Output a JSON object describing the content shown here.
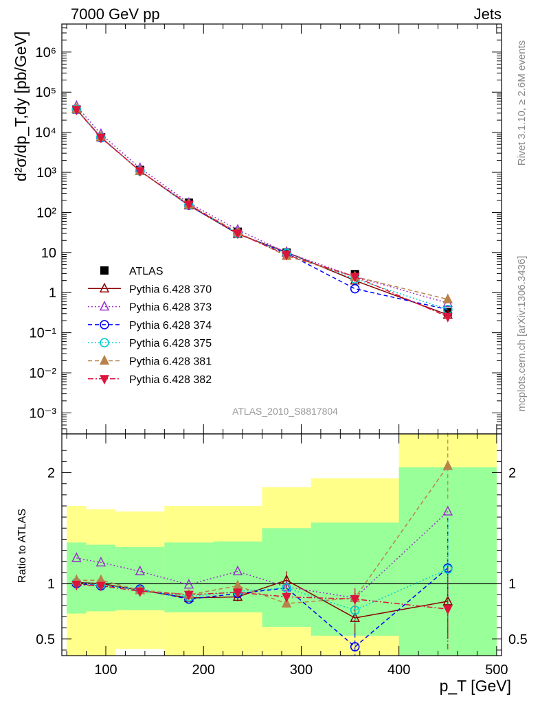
{
  "header": {
    "left": "7000 GeV pp",
    "right": "Jets"
  },
  "side_labels": {
    "rivet": "Rivet 3.1.10, ≥ 2.6M events",
    "mcplots": "mcplots.cern.ch [arXiv:1306.3436]"
  },
  "analysis_id": "ATLAS_2010_S8817804",
  "chart_data": [
    {
      "type": "scatter",
      "title": "",
      "ylabel": "d²σ/dp_T,dy [pb/GeV]",
      "yscale": "log",
      "ylim": [
        0.0003,
        5000000
      ],
      "xlim": [
        55,
        505
      ],
      "ytick_labels": [
        "10⁻³",
        "10⁻²",
        "10⁻¹",
        "1",
        "10",
        "10²",
        "10³",
        "10⁴",
        "10⁵",
        "10⁶"
      ],
      "ytick_values": [
        0.001,
        0.01,
        0.1,
        1,
        10,
        100,
        1000,
        10000,
        100000,
        1000000
      ],
      "legend_position": "lower-left",
      "x": [
        70,
        95,
        135,
        185,
        235,
        285,
        355,
        450
      ],
      "series": [
        {
          "name": "ATLAS",
          "color": "#000000",
          "marker": "square",
          "values": [
            37000,
            7500,
            1150,
            175,
            33,
            10,
            2.9,
            0.33
          ]
        },
        {
          "name": "Pythia 6.428 370",
          "color": "#8b0000",
          "marker": "triangle-open",
          "dash": "solid",
          "values": [
            37500,
            7500,
            1080,
            150,
            29,
            10.2,
            2.0,
            0.28
          ]
        },
        {
          "name": "Pythia 6.428 373",
          "color": "#9932cc",
          "marker": "triangle-open",
          "dash": "dotted",
          "values": [
            45000,
            9000,
            1280,
            172,
            37,
            10.0,
            2.5,
            0.55
          ]
        },
        {
          "name": "Pythia 6.428 374",
          "color": "#0000ff",
          "marker": "circle-open",
          "dash": "dashed",
          "values": [
            37000,
            7300,
            1090,
            150,
            30,
            9.6,
            1.25,
            0.38
          ]
        },
        {
          "name": "Pythia 6.428 375",
          "color": "#00ced1",
          "marker": "circle-open",
          "dash": "dotted",
          "values": [
            37500,
            7500,
            1080,
            152,
            30,
            9.6,
            2.2,
            0.38
          ]
        },
        {
          "name": "Pythia 6.428 381",
          "color": "#b8824a",
          "marker": "triangle-filled",
          "dash": "dashed",
          "values": [
            38000,
            7700,
            1080,
            157,
            32,
            8.2,
            2.5,
            0.68
          ]
        },
        {
          "name": "Pythia 6.428 382",
          "color": "#dc143c",
          "marker": "triangledown-filled",
          "dash": "dashdot",
          "values": [
            36500,
            7400,
            1080,
            157,
            30,
            8.8,
            2.5,
            0.25
          ]
        }
      ]
    },
    {
      "type": "scatter",
      "title": "",
      "ylabel": "Ratio to ATLAS",
      "xlabel": "p_T [GeV]",
      "ylim": [
        0.35,
        2.35
      ],
      "xlim": [
        55,
        505
      ],
      "ytick_labels": [
        "0.5",
        "1",
        "2"
      ],
      "ytick_values": [
        0.5,
        1,
        2
      ],
      "xtick_labels": [
        "100",
        "200",
        "300",
        "400",
        "500"
      ],
      "xtick_values": [
        100,
        200,
        300,
        400,
        500
      ],
      "reference_line": 1,
      "bins": [
        {
          "lo": 60,
          "hi": 80,
          "inner": [
            0.73,
            1.37
          ],
          "outer": [
            0.35,
            1.7
          ]
        },
        {
          "lo": 80,
          "hi": 110,
          "inner": [
            0.75,
            1.35
          ],
          "outer": [
            0.35,
            1.67
          ]
        },
        {
          "lo": 110,
          "hi": 160,
          "inner": [
            0.76,
            1.33
          ],
          "outer": [
            0.41,
            1.65
          ]
        },
        {
          "lo": 160,
          "hi": 210,
          "inner": [
            0.74,
            1.37
          ],
          "outer": [
            0.35,
            1.7
          ]
        },
        {
          "lo": 210,
          "hi": 260,
          "inner": [
            0.74,
            1.38
          ],
          "outer": [
            0.35,
            1.7
          ]
        },
        {
          "lo": 260,
          "hi": 310,
          "inner": [
            0.61,
            1.5
          ],
          "outer": [
            0.35,
            1.87
          ]
        },
        {
          "lo": 310,
          "hi": 400,
          "inner": [
            0.53,
            1.55
          ],
          "outer": [
            0.35,
            1.95
          ]
        },
        {
          "lo": 400,
          "hi": 500,
          "inner": [
            0.35,
            2.05
          ],
          "outer": [
            0.35,
            2.35
          ]
        }
      ],
      "x": [
        70,
        95,
        135,
        185,
        235,
        285,
        355,
        450
      ],
      "series": [
        {
          "name": "Pythia 6.428 370",
          "values": [
            1.01,
            1.0,
            0.94,
            0.87,
            0.88,
            1.03,
            0.69,
            0.84
          ],
          "err": [
            0,
            0,
            0,
            0,
            0.04,
            0.08,
            0.15,
            0.34
          ]
        },
        {
          "name": "Pythia 6.428 373",
          "values": [
            1.23,
            1.19,
            1.11,
            0.99,
            1.11,
            0.97,
            0.87,
            1.65
          ],
          "err": [
            0,
            0,
            0,
            0,
            0,
            0,
            0,
            0
          ]
        },
        {
          "name": "Pythia 6.428 374",
          "values": [
            1.0,
            0.98,
            0.95,
            0.86,
            0.91,
            0.96,
            0.43,
            1.14
          ],
          "err": [
            0,
            0,
            0,
            0,
            0,
            0,
            0.12,
            0.45
          ]
        },
        {
          "name": "Pythia 6.428 375",
          "values": [
            1.01,
            0.99,
            0.94,
            0.88,
            0.93,
            0.96,
            0.76,
            1.13
          ],
          "err": [
            0,
            0,
            0,
            0,
            0,
            0,
            0.14,
            0.44
          ]
        },
        {
          "name": "Pythia 6.428 381",
          "values": [
            1.03,
            1.03,
            0.94,
            0.9,
            0.98,
            0.82,
            0.87,
            2.06
          ],
          "err": [
            0,
            0,
            0,
            0,
            0.05,
            0.06,
            0.08,
            0.3
          ]
        },
        {
          "name": "Pythia 6.428 382",
          "values": [
            0.99,
            0.98,
            0.93,
            0.9,
            0.92,
            0.88,
            0.86,
            0.77
          ],
          "err": [
            0,
            0,
            0,
            0,
            0.04,
            0.05,
            0.1,
            0.38
          ]
        }
      ]
    }
  ]
}
